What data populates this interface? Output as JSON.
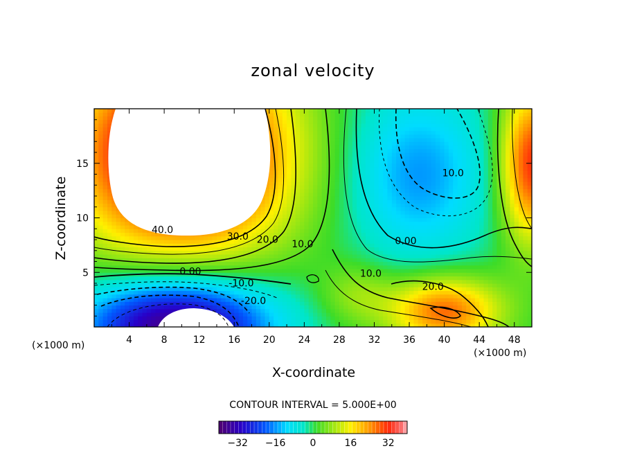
{
  "chart_data": {
    "type": "heatmap",
    "title": "zonal velocity",
    "xlabel": "X-coordinate",
    "ylabel": "Z-coordinate",
    "x_unit": "(×1000 m)",
    "xlim": [
      0,
      50
    ],
    "ylim": [
      0,
      20
    ],
    "x_ticks": [
      4,
      8,
      12,
      16,
      20,
      24,
      28,
      32,
      36,
      40,
      44,
      48
    ],
    "y_ticks": [
      5,
      10,
      15
    ],
    "contour_interval_text": "CONTOUR INTERVAL = 5.000E+00",
    "contour_interval": 5,
    "contour_labels": [
      {
        "text": "40.0",
        "x": 7.8,
        "z": 8.6
      },
      {
        "text": "30.0",
        "x": 16.4,
        "z": 8.0
      },
      {
        "text": "20.0",
        "x": 19.8,
        "z": 7.7
      },
      {
        "text": "10.0",
        "x": 23.8,
        "z": 7.3
      },
      {
        "text": "0.00",
        "x": 11.0,
        "z": 4.8
      },
      {
        "text": "-10.0",
        "x": 16.8,
        "z": 3.7
      },
      {
        "text": "-20.0",
        "x": 18.2,
        "z": 2.1
      },
      {
        "text": "10.0",
        "x": 31.6,
        "z": 4.6
      },
      {
        "text": "20.0",
        "x": 38.7,
        "z": 3.4
      },
      {
        "text": "0.00",
        "x": 35.6,
        "z": 7.6
      },
      {
        "text": "10.0",
        "x": 41.0,
        "z": 13.8
      }
    ],
    "colorbar": {
      "range": [
        -40,
        40
      ],
      "ticks": [
        -32,
        -16,
        0,
        16,
        32
      ],
      "tick_labels": [
        "−32",
        "−16",
        "0",
        "16",
        "32"
      ]
    },
    "features": [
      {
        "kind": "jet_max",
        "x": 10.0,
        "z": 16.0,
        "value": 45
      },
      {
        "kind": "jet_min",
        "x": 9.5,
        "z": 0.5,
        "value": -35
      },
      {
        "kind": "local_min",
        "x": 37.0,
        "z": 13.5,
        "value": -12
      },
      {
        "kind": "local_max",
        "x": 40.0,
        "z": 1.5,
        "value": 28
      },
      {
        "kind": "local_max",
        "x": 50.0,
        "z": 15.0,
        "value": 30
      }
    ]
  }
}
